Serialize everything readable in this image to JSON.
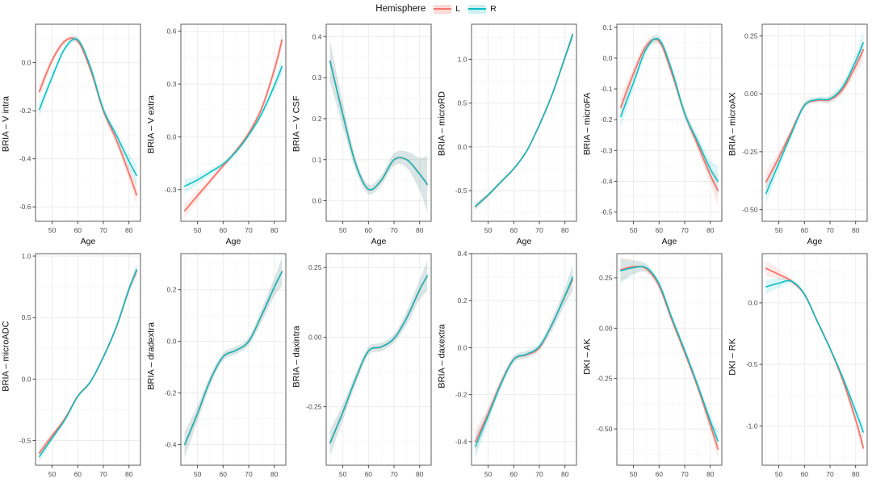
{
  "legend": {
    "title": "Hemisphere",
    "items": [
      {
        "label": "L",
        "color": "#F8766D",
        "fill": "#FBDAD7"
      },
      {
        "label": "R",
        "color": "#00BFC4",
        "fill": "#CEEFF0"
      }
    ]
  },
  "axis": {
    "x_label": "Age",
    "x_ticks": [
      50,
      60,
      70,
      80
    ],
    "x_minor": [
      45,
      55,
      65,
      75
    ],
    "xlim": [
      43.5,
      84.5
    ]
  },
  "style_colors": {
    "grid_major": "#ebebeb",
    "grid_minor": "#f5f5f5",
    "panel_border": "#4d4d4d",
    "tick": "#333333",
    "tick_text": "#4d4d4d",
    "axis_title": "#111111"
  },
  "chart_data": [
    {
      "type": "line",
      "ylabel": "BRIA – V intra",
      "x_title": true,
      "x": [
        45,
        50,
        55,
        60,
        65,
        70,
        75,
        80,
        83
      ],
      "series": [
        {
          "name": "L",
          "values": [
            -0.12,
            0.01,
            0.09,
            0.09,
            -0.03,
            -0.2,
            -0.32,
            -0.46,
            -0.55
          ]
        },
        {
          "name": "R",
          "values": [
            -0.195,
            -0.06,
            0.06,
            0.095,
            -0.02,
            -0.195,
            -0.3,
            -0.41,
            -0.47
          ]
        }
      ],
      "band": [
        0.03,
        0.015,
        0.012,
        0.012,
        0.012,
        0.015,
        0.02,
        0.03,
        0.045
      ],
      "ylim": [
        -0.66,
        0.16
      ],
      "y_ticks": [
        {
          "v": 0.0,
          "label": "0.0"
        },
        {
          "v": -0.2,
          "label": "-0.2"
        },
        {
          "v": -0.4,
          "label": "-0.4"
        },
        {
          "v": -0.6,
          "label": "-0.6"
        }
      ]
    },
    {
      "type": "line",
      "ylabel": "BRIA – V extra",
      "x_title": true,
      "x": [
        45,
        50,
        55,
        60,
        65,
        70,
        75,
        80,
        83
      ],
      "series": [
        {
          "name": "L",
          "values": [
            -0.42,
            -0.335,
            -0.25,
            -0.165,
            -0.08,
            0.02,
            0.16,
            0.38,
            0.55
          ]
        },
        {
          "name": "R",
          "values": [
            -0.28,
            -0.245,
            -0.2,
            -0.155,
            -0.085,
            0.01,
            0.13,
            0.29,
            0.4
          ]
        }
      ],
      "band": [
        0.04,
        0.025,
        0.018,
        0.015,
        0.015,
        0.015,
        0.02,
        0.03,
        0.045
      ],
      "ylim": [
        -0.48,
        0.64
      ],
      "y_ticks": [
        {
          "v": 0.6,
          "label": "0.6"
        },
        {
          "v": 0.3,
          "label": "0.3"
        },
        {
          "v": 0.0,
          "label": "0.0"
        },
        {
          "v": -0.3,
          "label": "-0.3"
        }
      ]
    },
    {
      "type": "line",
      "ylabel": "BRIA – V CSF",
      "x_title": true,
      "x": [
        45,
        50,
        55,
        60,
        65,
        70,
        75,
        80,
        83
      ],
      "series": [
        {
          "name": "L",
          "values": [
            0.34,
            0.21,
            0.09,
            0.028,
            0.05,
            0.1,
            0.1,
            0.065,
            0.04
          ]
        },
        {
          "name": "R",
          "values": [
            0.34,
            0.21,
            0.09,
            0.028,
            0.05,
            0.1,
            0.1,
            0.065,
            0.04
          ]
        }
      ],
      "band": [
        0.05,
        0.03,
        0.015,
        0.012,
        0.012,
        0.015,
        0.02,
        0.04,
        0.07
      ],
      "ylim": [
        -0.05,
        0.43
      ],
      "y_ticks": [
        {
          "v": 0.4,
          "label": "0.4"
        },
        {
          "v": 0.3,
          "label": "0.3"
        },
        {
          "v": 0.2,
          "label": "0.2"
        },
        {
          "v": 0.1,
          "label": "0.1"
        },
        {
          "v": 0.0,
          "label": "0.0"
        }
      ]
    },
    {
      "type": "line",
      "ylabel": "BRIA – microRD",
      "x_title": true,
      "x": [
        45,
        50,
        55,
        60,
        65,
        70,
        75,
        80,
        83
      ],
      "series": [
        {
          "name": "L",
          "values": [
            -0.68,
            -0.55,
            -0.4,
            -0.25,
            -0.05,
            0.25,
            0.6,
            1.02,
            1.28
          ]
        },
        {
          "name": "R",
          "values": [
            -0.68,
            -0.55,
            -0.4,
            -0.25,
            -0.05,
            0.25,
            0.6,
            1.02,
            1.28
          ]
        }
      ],
      "band": [
        0.04,
        0.02,
        0.015,
        0.012,
        0.012,
        0.015,
        0.02,
        0.03,
        0.05
      ],
      "ylim": [
        -0.85,
        1.4
      ],
      "y_ticks": [
        {
          "v": 1.0,
          "label": "1.0"
        },
        {
          "v": 0.5,
          "label": "0.5"
        },
        {
          "v": 0.0,
          "label": "0.0"
        },
        {
          "v": -0.5,
          "label": "-0.5"
        }
      ]
    },
    {
      "type": "line",
      "ylabel": "BRIA – microFA",
      "x_title": true,
      "x": [
        45,
        50,
        55,
        60,
        65,
        70,
        75,
        80,
        83
      ],
      "series": [
        {
          "name": "L",
          "values": [
            -0.16,
            -0.05,
            0.04,
            0.055,
            -0.05,
            -0.18,
            -0.28,
            -0.38,
            -0.43
          ]
        },
        {
          "name": "R",
          "values": [
            -0.19,
            -0.08,
            0.03,
            0.06,
            -0.04,
            -0.18,
            -0.27,
            -0.36,
            -0.4
          ]
        }
      ],
      "band": [
        0.035,
        0.02,
        0.015,
        0.012,
        0.012,
        0.015,
        0.02,
        0.03,
        0.05
      ],
      "ylim": [
        -0.53,
        0.11
      ],
      "y_ticks": [
        {
          "v": 0.1,
          "label": "0.1"
        },
        {
          "v": 0.0,
          "label": "0.0"
        },
        {
          "v": -0.1,
          "label": "-0.1"
        },
        {
          "v": -0.2,
          "label": "-0.2"
        },
        {
          "v": -0.3,
          "label": "-0.3"
        },
        {
          "v": -0.4,
          "label": "-0.4"
        },
        {
          "v": -0.5,
          "label": "-0.5"
        }
      ]
    },
    {
      "type": "line",
      "ylabel": "BRIA – microAX",
      "x_title": true,
      "x": [
        45,
        50,
        55,
        60,
        65,
        70,
        75,
        80,
        83
      ],
      "series": [
        {
          "name": "L",
          "values": [
            -0.38,
            -0.275,
            -0.16,
            -0.05,
            -0.028,
            -0.025,
            0.02,
            0.12,
            0.19
          ]
        },
        {
          "name": "R",
          "values": [
            -0.43,
            -0.3,
            -0.17,
            -0.05,
            -0.025,
            -0.022,
            0.03,
            0.14,
            0.22
          ]
        }
      ],
      "band": [
        0.045,
        0.025,
        0.015,
        0.012,
        0.012,
        0.015,
        0.02,
        0.03,
        0.05
      ],
      "ylim": [
        -0.55,
        0.3
      ],
      "y_ticks": [
        {
          "v": 0.25,
          "label": "0.25"
        },
        {
          "v": 0.0,
          "label": "0.00"
        },
        {
          "v": -0.25,
          "label": "-0.25"
        },
        {
          "v": -0.5,
          "label": "-0.50"
        }
      ]
    },
    {
      "type": "line",
      "ylabel": "BRIA – microADC",
      "x_title": false,
      "x": [
        45,
        50,
        55,
        60,
        65,
        70,
        75,
        80,
        83
      ],
      "series": [
        {
          "name": "L",
          "values": [
            -0.6,
            -0.46,
            -0.32,
            -0.14,
            -0.02,
            0.18,
            0.42,
            0.73,
            0.88
          ]
        },
        {
          "name": "R",
          "values": [
            -0.63,
            -0.48,
            -0.33,
            -0.14,
            -0.02,
            0.18,
            0.42,
            0.73,
            0.89
          ]
        }
      ],
      "band": [
        0.04,
        0.02,
        0.015,
        0.012,
        0.012,
        0.015,
        0.02,
        0.03,
        0.045
      ],
      "ylim": [
        -0.7,
        1.02
      ],
      "y_ticks": [
        {
          "v": 1.0,
          "label": "1.0"
        },
        {
          "v": 0.5,
          "label": "0.5"
        },
        {
          "v": 0.0,
          "label": "0.0"
        },
        {
          "v": -0.5,
          "label": "-0.5"
        }
      ]
    },
    {
      "type": "line",
      "ylabel": "BRIA – dradextra",
      "x_title": false,
      "x": [
        45,
        50,
        55,
        60,
        65,
        70,
        75,
        80,
        83
      ],
      "series": [
        {
          "name": "L",
          "values": [
            -0.4,
            -0.28,
            -0.15,
            -0.06,
            -0.035,
            0.0,
            0.1,
            0.21,
            0.27
          ]
        },
        {
          "name": "R",
          "values": [
            -0.4,
            -0.28,
            -0.15,
            -0.06,
            -0.035,
            0.0,
            0.1,
            0.21,
            0.27
          ]
        }
      ],
      "band": [
        0.05,
        0.03,
        0.02,
        0.015,
        0.015,
        0.015,
        0.025,
        0.035,
        0.055
      ],
      "ylim": [
        -0.48,
        0.34
      ],
      "y_ticks": [
        {
          "v": 0.2,
          "label": "0.2"
        },
        {
          "v": 0.0,
          "label": "0.0"
        },
        {
          "v": -0.2,
          "label": "-0.2"
        },
        {
          "v": -0.4,
          "label": "-0.4"
        }
      ]
    },
    {
      "type": "line",
      "ylabel": "BRIA – daxintra",
      "x_title": false,
      "x": [
        45,
        50,
        55,
        60,
        65,
        70,
        75,
        80,
        83
      ],
      "series": [
        {
          "name": "L",
          "values": [
            -0.38,
            -0.27,
            -0.15,
            -0.05,
            -0.035,
            -0.005,
            0.07,
            0.17,
            0.22
          ]
        },
        {
          "name": "R",
          "values": [
            -0.38,
            -0.27,
            -0.15,
            -0.05,
            -0.035,
            -0.005,
            0.07,
            0.17,
            0.22
          ]
        }
      ],
      "band": [
        0.045,
        0.03,
        0.02,
        0.015,
        0.015,
        0.015,
        0.025,
        0.035,
        0.055
      ],
      "ylim": [
        -0.46,
        0.3
      ],
      "y_ticks": [
        {
          "v": 0.25,
          "label": "0.25"
        },
        {
          "v": 0.0,
          "label": "0.00"
        },
        {
          "v": -0.25,
          "label": "-0.25"
        }
      ]
    },
    {
      "type": "line",
      "ylabel": "BRIA – daxextra",
      "x_title": false,
      "x": [
        45,
        50,
        55,
        60,
        65,
        70,
        75,
        80,
        83
      ],
      "series": [
        {
          "name": "L",
          "values": [
            -0.4,
            -0.28,
            -0.15,
            -0.05,
            -0.03,
            0.0,
            0.1,
            0.22,
            0.29
          ]
        },
        {
          "name": "R",
          "values": [
            -0.42,
            -0.29,
            -0.155,
            -0.05,
            -0.028,
            0.005,
            0.1,
            0.22,
            0.3
          ]
        }
      ],
      "band": [
        0.05,
        0.03,
        0.02,
        0.015,
        0.015,
        0.015,
        0.025,
        0.035,
        0.055
      ],
      "ylim": [
        -0.5,
        0.4
      ],
      "y_ticks": [
        {
          "v": 0.4,
          "label": "0.4"
        },
        {
          "v": 0.2,
          "label": "0.2"
        },
        {
          "v": 0.0,
          "label": "0.0"
        },
        {
          "v": -0.2,
          "label": "-0.2"
        },
        {
          "v": -0.4,
          "label": "-0.4"
        }
      ]
    },
    {
      "type": "line",
      "ylabel": "DKI – AK",
      "x_title": false,
      "x": [
        45,
        50,
        55,
        60,
        65,
        70,
        75,
        80,
        83
      ],
      "series": [
        {
          "name": "L",
          "values": [
            0.29,
            0.305,
            0.295,
            0.21,
            0.04,
            -0.12,
            -0.29,
            -0.48,
            -0.6
          ]
        },
        {
          "name": "R",
          "values": [
            0.285,
            0.3,
            0.3,
            0.22,
            0.05,
            -0.11,
            -0.28,
            -0.46,
            -0.56
          ]
        }
      ],
      "band": [
        0.06,
        0.035,
        0.02,
        0.015,
        0.015,
        0.015,
        0.02,
        0.03,
        0.05
      ],
      "ylim": [
        -0.68,
        0.37
      ],
      "y_ticks": [
        {
          "v": 0.25,
          "label": "0.25"
        },
        {
          "v": 0.0,
          "label": "0.00"
        },
        {
          "v": -0.25,
          "label": "-0.25"
        },
        {
          "v": -0.5,
          "label": "-0.50"
        }
      ]
    },
    {
      "type": "line",
      "ylabel": "DKI – RK",
      "x_title": false,
      "x": [
        45,
        50,
        55,
        60,
        65,
        70,
        75,
        80,
        83
      ],
      "series": [
        {
          "name": "L",
          "values": [
            0.28,
            0.23,
            0.175,
            0.07,
            -0.15,
            -0.37,
            -0.63,
            -0.95,
            -1.18
          ]
        },
        {
          "name": "R",
          "values": [
            0.13,
            0.16,
            0.175,
            0.07,
            -0.15,
            -0.37,
            -0.61,
            -0.88,
            -1.05
          ]
        }
      ],
      "band": [
        0.06,
        0.04,
        0.02,
        0.015,
        0.015,
        0.015,
        0.025,
        0.04,
        0.06
      ],
      "ylim": [
        -1.32,
        0.4
      ],
      "y_ticks": [
        {
          "v": 0.0,
          "label": "0.0"
        },
        {
          "v": -0.5,
          "label": "-0.5"
        },
        {
          "v": -1.0,
          "label": "-1.0"
        }
      ]
    }
  ]
}
